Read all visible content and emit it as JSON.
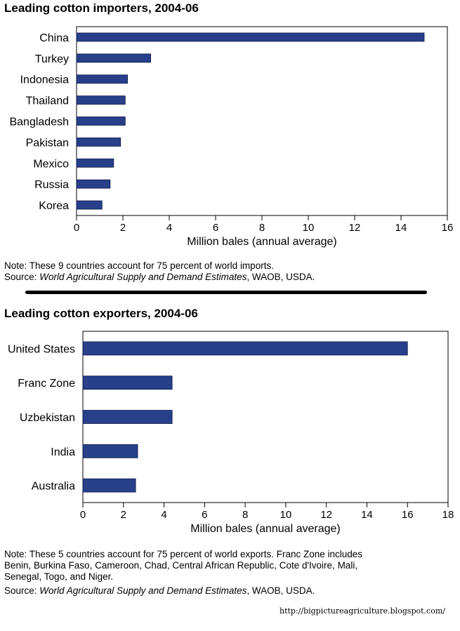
{
  "chart_data": [
    {
      "type": "bar",
      "orientation": "horizontal",
      "title": "Leading cotton importers, 2004-06",
      "categories": [
        "China",
        "Turkey",
        "Indonesia",
        "Thailand",
        "Bangladesh",
        "Pakistan",
        "Mexico",
        "Russia",
        "Korea"
      ],
      "values": [
        15.0,
        3.2,
        2.2,
        2.1,
        2.1,
        1.9,
        1.6,
        1.45,
        1.1
      ],
      "xlabel": "Million bales (annual average)",
      "xlim": [
        0,
        16
      ],
      "xticks": [
        "0",
        "2",
        "4",
        "6",
        "8",
        "10",
        "12",
        "14",
        "16"
      ],
      "bar_color": "#283f8a",
      "grid": false,
      "note": "Note: These 9 countries account for 75 percent of world imports.",
      "source_prefix": "Source: ",
      "source_title": "World Agricultural Supply and Demand Estimates",
      "source_suffix": ", WAOB, USDA."
    },
    {
      "type": "bar",
      "orientation": "horizontal",
      "title": "Leading cotton exporters, 2004-06",
      "categories": [
        "United States",
        "Franc Zone",
        "Uzbekistan",
        "India",
        "Australia"
      ],
      "values": [
        16.0,
        4.4,
        4.4,
        2.7,
        2.6
      ],
      "xlabel": "Million bales (annual average)",
      "xlim": [
        0,
        18
      ],
      "xticks": [
        "0",
        "2",
        "4",
        "6",
        "8",
        "10",
        "12",
        "14",
        "16",
        "18"
      ],
      "bar_color": "#283f8a",
      "grid": false,
      "note_lines": [
        "Note: These 5 countries account for 75 percent of world exports. Franc Zone includes",
        "Benin, Burkina Faso, Cameroon, Chad, Central African Republic, Cote d'Ivoire, Mali,",
        "Senegal, Togo, and Niger."
      ],
      "source_prefix": "Source: ",
      "source_title": "World Agricultural Supply and Demand Estimates",
      "source_suffix": ", WAOB, USDA."
    }
  ],
  "footer_url": "http://bigpictureagriculture.blogspot.com/"
}
